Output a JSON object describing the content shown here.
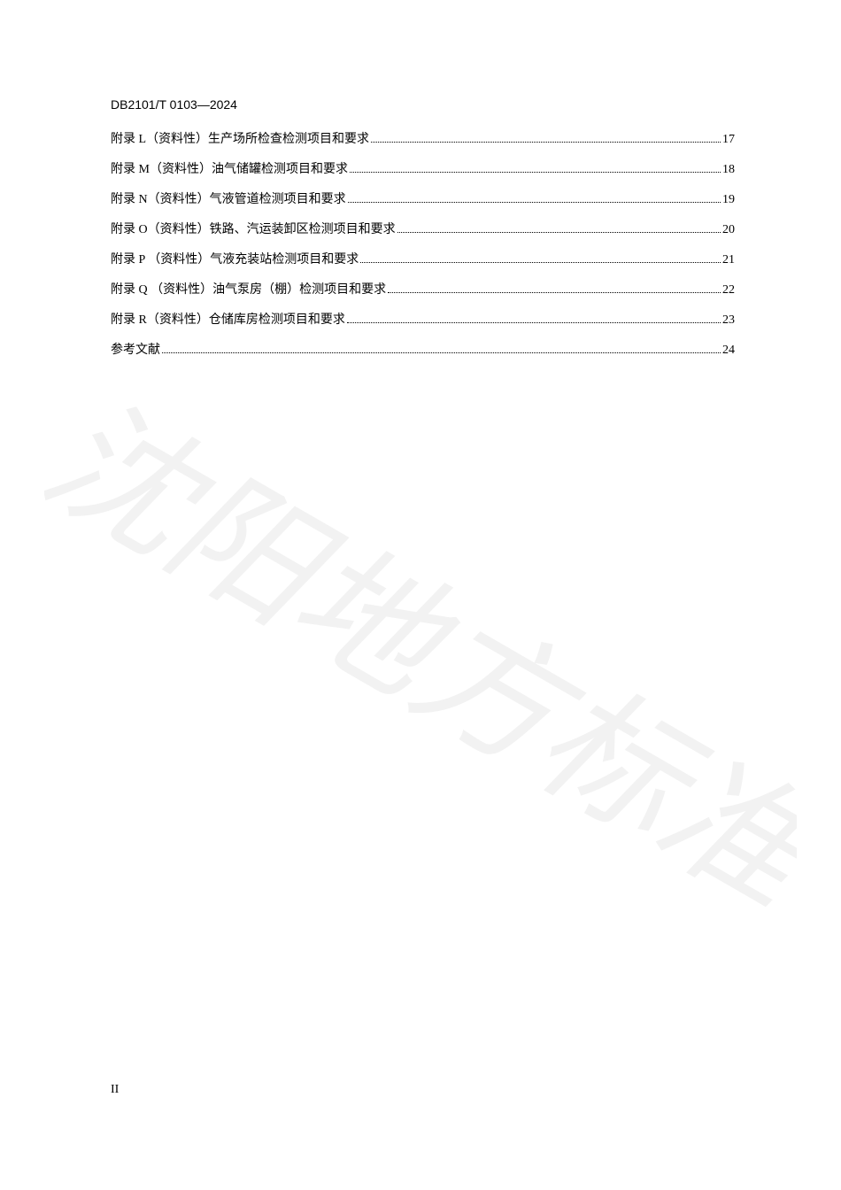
{
  "doc_number": "DB2101/T 0103—2024",
  "toc": [
    {
      "label": "附录 L（资料性）生产场所检查检测项目和要求",
      "page": "17"
    },
    {
      "label": "附录 M（资料性）油气储罐检测项目和要求",
      "page": "18"
    },
    {
      "label": "附录 N（资料性）气液管道检测项目和要求",
      "page": "19"
    },
    {
      "label": "附录 O（资料性）铁路、汽运装卸区检测项目和要求",
      "page": "20"
    },
    {
      "label": "附录 P （资料性）气液充装站检测项目和要求",
      "page": "21"
    },
    {
      "label": "附录 Q （资料性）油气泵房（棚）检测项目和要求",
      "page": "22"
    },
    {
      "label": "附录 R（资料性）仓储库房检测项目和要求",
      "page": "23"
    },
    {
      "label": "参考文献",
      "page": "24"
    }
  ],
  "page_number": "II",
  "watermark_text": "沈阳地方标准",
  "colors": {
    "text": "#000000",
    "background": "#ffffff",
    "watermark": "#666666"
  }
}
